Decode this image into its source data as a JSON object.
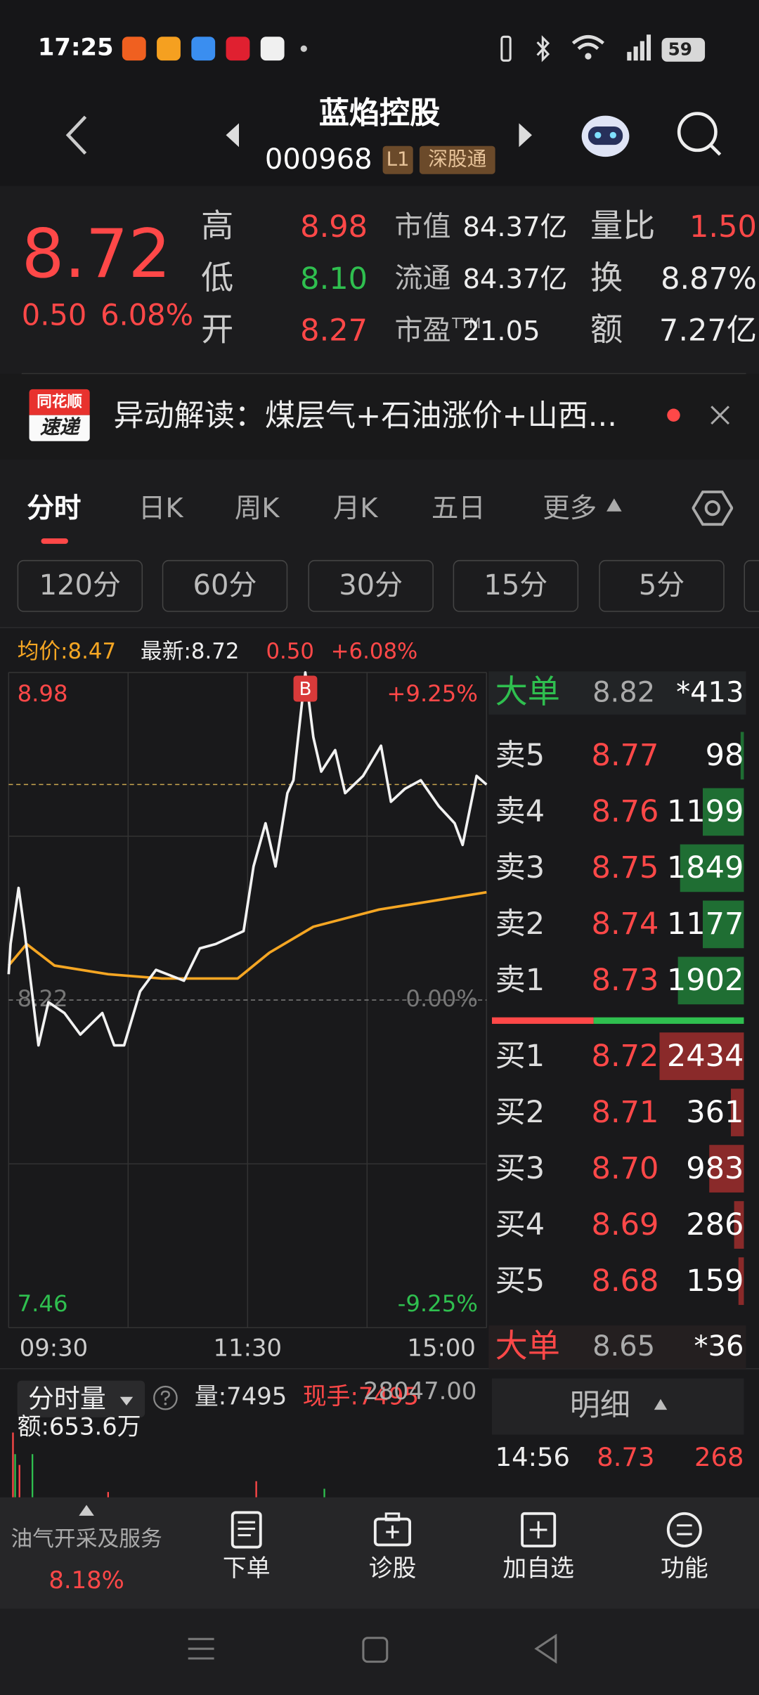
{
  "status_bar": {
    "time": "17:25",
    "battery": "59"
  },
  "header": {
    "title": "蓝焰控股",
    "code": "000968",
    "badges": [
      "L1",
      "深股通"
    ]
  },
  "quote": {
    "price": "8.72",
    "change": "0.50",
    "change_pct": "6.08%",
    "stats": [
      [
        {
          "label": "高",
          "value": "8.98"
        },
        {
          "label": "市值",
          "value": "84.37亿"
        },
        {
          "label": "量比",
          "value": "1.50"
        }
      ],
      [
        {
          "label": "低",
          "value": "8.10"
        },
        {
          "label": "流通",
          "value": "84.37亿"
        },
        {
          "label": "换",
          "value": "8.87%"
        }
      ],
      [
        {
          "label": "开",
          "value": "8.27"
        },
        {
          "label": "市盈",
          "label_sup": "TTM",
          "value": "21.05"
        },
        {
          "label": "额",
          "value": "7.27亿"
        }
      ]
    ]
  },
  "news": {
    "logo": [
      "同花顺",
      "速递"
    ],
    "text": "异动解读：煤层气+石油涨价+山西..."
  },
  "tabs": [
    "分时",
    "日K",
    "周K",
    "月K",
    "五日",
    "更多"
  ],
  "periods": [
    "120分",
    "60分",
    "30分",
    "15分",
    "5分"
  ],
  "info": {
    "avg": "均价:8.47",
    "latest": "最新:8.72",
    "change": "0.50",
    "change_pct": "+6.08%"
  },
  "price_chart": {
    "type": "line",
    "xlim": [
      0,
      240
    ],
    "ylim": [
      7.46,
      8.98
    ],
    "y2lim": [
      -9.25,
      9.25
    ],
    "yticks": [
      8.98,
      8.22,
      7.46
    ],
    "y2ticks": [
      {
        "value": 9.25,
        "label": "+9.25%"
      },
      {
        "value": 0,
        "label": "0.00%"
      },
      {
        "value": -9.25,
        "label": "-9.25%"
      }
    ],
    "xticks": [
      {
        "value": 0,
        "label": "09:30"
      },
      {
        "value": 120,
        "label": "11:30"
      },
      {
        "value": 240,
        "label": "15:00"
      }
    ],
    "series": [
      {
        "color": "#f2f2f2",
        "x": [
          0,
          1,
          5,
          8,
          15,
          20,
          28,
          36,
          47,
          53,
          58,
          66,
          74,
          88,
          96,
          104,
          118,
          123,
          129,
          134,
          140,
          143,
          149,
          153,
          157,
          164,
          169,
          178,
          187,
          192,
          199,
          207,
          216,
          224,
          228,
          235,
          240
        ],
        "values": [
          8.28,
          8.35,
          8.48,
          8.38,
          8.115,
          8.215,
          8.19,
          8.14,
          8.19,
          8.115,
          8.115,
          8.24,
          8.29,
          8.265,
          8.34,
          8.35,
          8.38,
          8.53,
          8.63,
          8.53,
          8.7,
          8.73,
          8.98,
          8.83,
          8.75,
          8.8,
          8.7,
          8.74,
          8.81,
          8.68,
          8.71,
          8.73,
          8.67,
          8.63,
          8.58,
          8.74,
          8.72
        ]
      },
      {
        "color": "#f5a623",
        "x": [
          0,
          9,
          23,
          50,
          77,
          115,
          131,
          153,
          186,
          240
        ],
        "values": [
          8.3,
          8.35,
          8.3,
          8.28,
          8.27,
          8.27,
          8.33,
          8.39,
          8.43,
          8.47
        ]
      }
    ],
    "marker": {
      "label": "B"
    }
  },
  "order_book": {
    "big_top": {
      "label": "大单",
      "price": "8.82",
      "volume": "*413"
    },
    "asks": [
      {
        "label": "卖5",
        "price": "8.77",
        "volume": 98
      },
      {
        "label": "卖4",
        "price": "8.76",
        "volume": 1199
      },
      {
        "label": "卖3",
        "price": "8.75",
        "volume": 1849
      },
      {
        "label": "卖2",
        "price": "8.74",
        "volume": 1177
      },
      {
        "label": "卖1",
        "price": "8.73",
        "volume": 1902
      }
    ],
    "bids": [
      {
        "label": "买1",
        "price": "8.72",
        "volume": 2434
      },
      {
        "label": "买2",
        "price": "8.71",
        "volume": 361
      },
      {
        "label": "买3",
        "price": "8.70",
        "volume": 983
      },
      {
        "label": "买4",
        "price": "8.69",
        "volume": 286
      },
      {
        "label": "买5",
        "price": "8.68",
        "volume": 159
      }
    ],
    "big_bottom": {
      "label": "大单",
      "price": "8.65",
      "volume": "*36"
    }
  },
  "volume_panel": {
    "title": "分时量",
    "volume": "量:7495",
    "current": "现手:7495",
    "max": "28047.00",
    "amount": "额:653.6万"
  },
  "detail": {
    "title": "明细",
    "rows": [
      [
        "14:56",
        "8.73",
        "268"
      ]
    ]
  },
  "sector": {
    "name": "油气开采及服务",
    "change": "8.18%"
  },
  "actions": [
    "下单",
    "诊股",
    "加自选",
    "功能"
  ]
}
